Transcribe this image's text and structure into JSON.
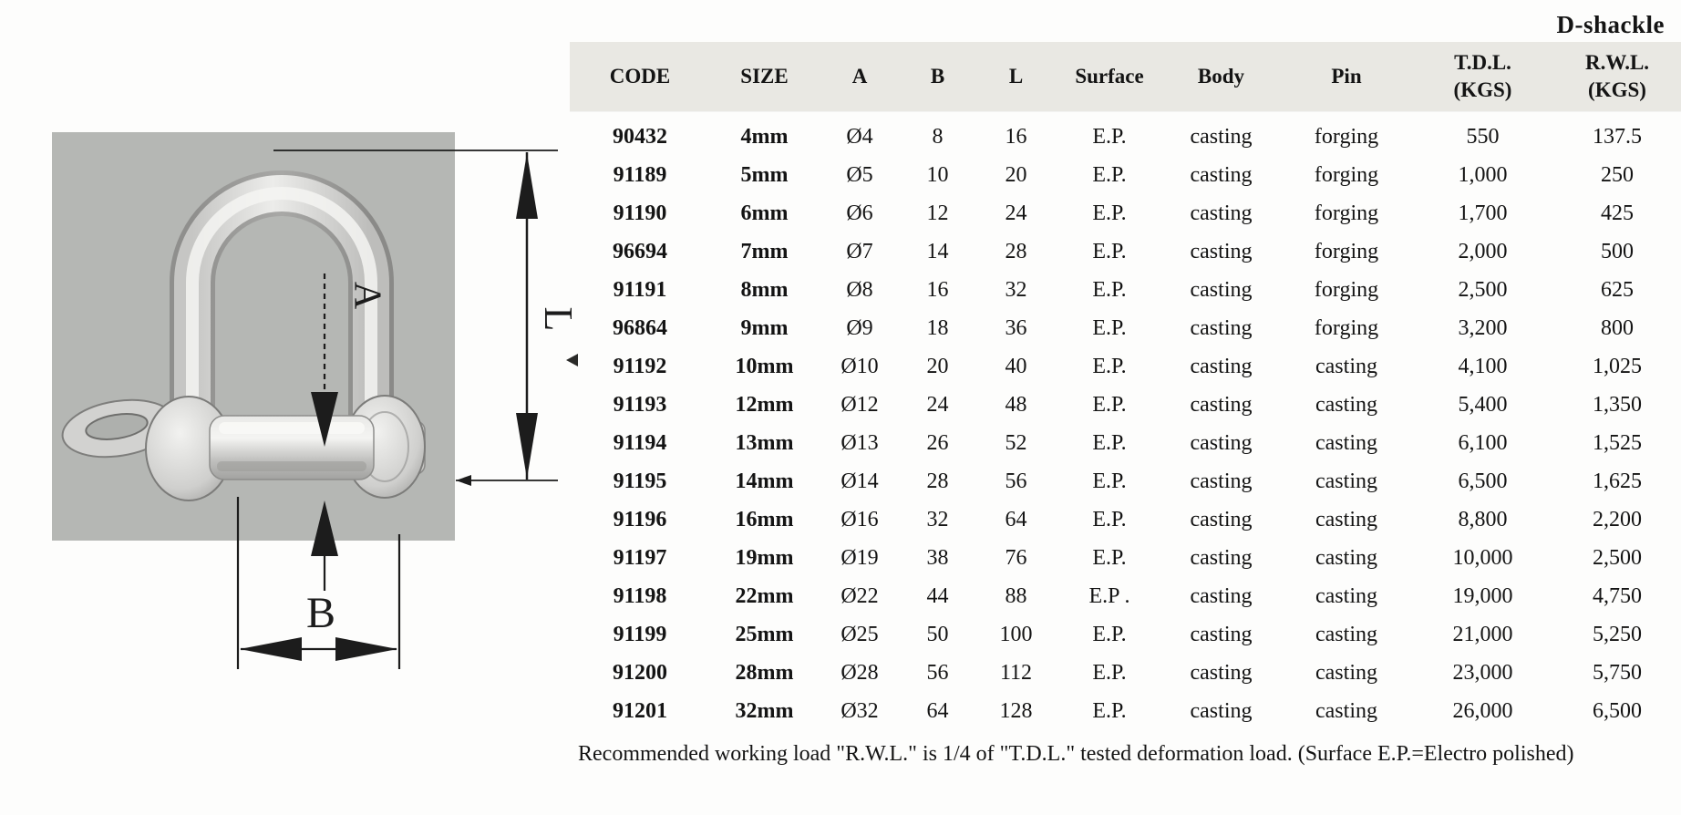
{
  "page": {
    "title": "D-shackle",
    "footnote": "Recommended working load \"R.W.L.\" is 1/4 of \"T.D.L.\" tested deformation load. (Surface E.P.=Electro polished)",
    "colors": {
      "header_band": "#e9e8e3",
      "photo_background": "#b5b7b4",
      "text": "#141414",
      "page_background": "#fdfdfc"
    }
  },
  "figure": {
    "description": "Stainless steel D-shackle product photo with dimension callouts",
    "dimension_labels": {
      "length": "L",
      "pin": "A",
      "width": "B"
    }
  },
  "table": {
    "columns": [
      {
        "label": "CODE"
      },
      {
        "label": "SIZE"
      },
      {
        "label": "A"
      },
      {
        "label": "B"
      },
      {
        "label": "L"
      },
      {
        "label": "Surface"
      },
      {
        "label": "Body"
      },
      {
        "label": "Pin"
      },
      {
        "label": "T.D.L.",
        "sub": "(KGS)"
      },
      {
        "label": "R.W.L.",
        "sub": "(KGS)"
      }
    ],
    "rows": [
      [
        "90432",
        "4mm",
        "Ø4",
        "8",
        "16",
        "E.P.",
        "casting",
        "forging",
        "550",
        "137.5"
      ],
      [
        "91189",
        "5mm",
        "Ø5",
        "10",
        "20",
        "E.P.",
        "casting",
        "forging",
        "1,000",
        "250"
      ],
      [
        "91190",
        "6mm",
        "Ø6",
        "12",
        "24",
        "E.P.",
        "casting",
        "forging",
        "1,700",
        "425"
      ],
      [
        "96694",
        "7mm",
        "Ø7",
        "14",
        "28",
        "E.P.",
        "casting",
        "forging",
        "2,000",
        "500"
      ],
      [
        "91191",
        "8mm",
        "Ø8",
        "16",
        "32",
        "E.P.",
        "casting",
        "forging",
        "2,500",
        "625"
      ],
      [
        "96864",
        "9mm",
        "Ø9",
        "18",
        "36",
        "E.P.",
        "casting",
        "forging",
        "3,200",
        "800"
      ],
      [
        "91192",
        "10mm",
        "Ø10",
        "20",
        "40",
        "E.P.",
        "casting",
        "casting",
        "4,100",
        "1,025"
      ],
      [
        "91193",
        "12mm",
        "Ø12",
        "24",
        "48",
        "E.P.",
        "casting",
        "casting",
        "5,400",
        "1,350"
      ],
      [
        "91194",
        "13mm",
        "Ø13",
        "26",
        "52",
        "E.P.",
        "casting",
        "casting",
        "6,100",
        "1,525"
      ],
      [
        "91195",
        "14mm",
        "Ø14",
        "28",
        "56",
        "E.P.",
        "casting",
        "casting",
        "6,500",
        "1,625"
      ],
      [
        "91196",
        "16mm",
        "Ø16",
        "32",
        "64",
        "E.P.",
        "casting",
        "casting",
        "8,800",
        "2,200"
      ],
      [
        "91197",
        "19mm",
        "Ø19",
        "38",
        "76",
        "E.P.",
        "casting",
        "casting",
        "10,000",
        "2,500"
      ],
      [
        "91198",
        "22mm",
        "Ø22",
        "44",
        "88",
        "E.P .",
        "casting",
        "casting",
        "19,000",
        "4,750"
      ],
      [
        "91199",
        "25mm",
        "Ø25",
        "50",
        "100",
        "E.P.",
        "casting",
        "casting",
        "21,000",
        "5,250"
      ],
      [
        "91200",
        "28mm",
        "Ø28",
        "56",
        "112",
        "E.P.",
        "casting",
        "casting",
        "23,000",
        "5,750"
      ],
      [
        "91201",
        "32mm",
        "Ø32",
        "64",
        "128",
        "E.P.",
        "casting",
        "casting",
        "26,000",
        "6,500"
      ]
    ]
  }
}
